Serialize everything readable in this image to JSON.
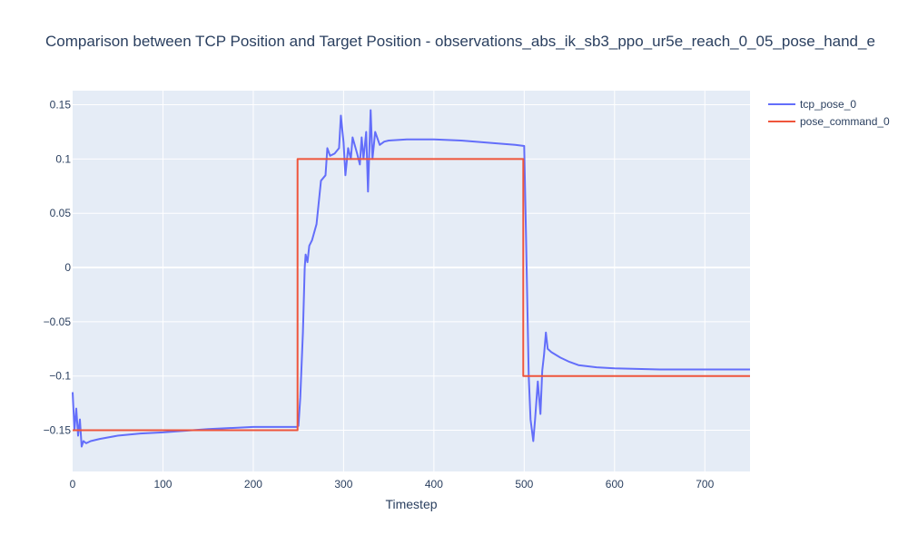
{
  "chart_data": {
    "type": "line",
    "title": "Comparison between TCP Position and Target Position - observations_abs_ik_sb3_ppo_ur5e_reach_0_05_pose_hand_e",
    "xlabel": "Timestep",
    "ylabel": "",
    "xlim": [
      0,
      750
    ],
    "ylim": [
      -0.188,
      0.163
    ],
    "x_ticks": [
      0,
      100,
      200,
      300,
      400,
      500,
      600,
      700
    ],
    "y_ticks": [
      -0.15,
      -0.1,
      -0.05,
      0,
      0.05,
      0.1,
      0.15
    ],
    "x_tick_labels": [
      "0",
      "100",
      "200",
      "300",
      "400",
      "500",
      "600",
      "700"
    ],
    "y_tick_labels": [
      "−0.15",
      "−0.1",
      "−0.05",
      "0",
      "0.05",
      "0.1",
      "0.15"
    ],
    "grid": true,
    "legend_position": "top-right",
    "series": [
      {
        "name": "tcp_pose_0",
        "color": "#636efa",
        "x": [
          0,
          2,
          4,
          6,
          8,
          10,
          12,
          15,
          20,
          30,
          50,
          75,
          100,
          150,
          200,
          248,
          250,
          252,
          255,
          257,
          258,
          260,
          262,
          265,
          270,
          275,
          280,
          282,
          285,
          290,
          295,
          297,
          300,
          302,
          305,
          308,
          310,
          315,
          318,
          320,
          322,
          325,
          327,
          330,
          332,
          335,
          340,
          345,
          350,
          370,
          400,
          430,
          460,
          490,
          500,
          502,
          505,
          507,
          510,
          512,
          515,
          518,
          520,
          522,
          524,
          526,
          530,
          540,
          550,
          560,
          580,
          600,
          650,
          700,
          750
        ],
        "y": [
          -0.115,
          -0.15,
          -0.13,
          -0.155,
          -0.14,
          -0.165,
          -0.16,
          -0.162,
          -0.16,
          -0.158,
          -0.155,
          -0.153,
          -0.152,
          -0.149,
          -0.147,
          -0.147,
          -0.146,
          -0.12,
          -0.06,
          0.0,
          0.012,
          0.005,
          0.02,
          0.025,
          0.04,
          0.08,
          0.085,
          0.11,
          0.103,
          0.105,
          0.11,
          0.14,
          0.115,
          0.085,
          0.11,
          0.1,
          0.12,
          0.105,
          0.095,
          0.12,
          0.1,
          0.125,
          0.07,
          0.145,
          0.1,
          0.125,
          0.113,
          0.116,
          0.117,
          0.118,
          0.118,
          0.117,
          0.115,
          0.113,
          0.112,
          0.03,
          -0.1,
          -0.14,
          -0.16,
          -0.14,
          -0.105,
          -0.135,
          -0.095,
          -0.08,
          -0.06,
          -0.075,
          -0.078,
          -0.083,
          -0.087,
          -0.09,
          -0.092,
          -0.093,
          -0.094,
          -0.094,
          -0.094
        ]
      },
      {
        "name": "pose_command_0",
        "color": "#ef553b",
        "x": [
          0,
          249,
          249,
          499,
          499,
          750
        ],
        "y": [
          -0.15,
          -0.15,
          0.1,
          0.1,
          -0.1,
          -0.1
        ]
      }
    ]
  }
}
